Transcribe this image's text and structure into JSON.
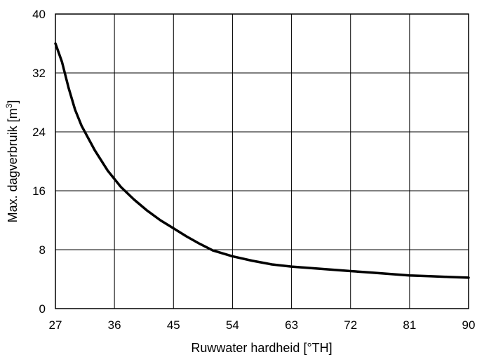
{
  "chart_data": {
    "type": "line",
    "title": "",
    "xlabel": "Ruwwater hardheid [°TH]",
    "ylabel_main": "Max. dagverbruik [m",
    "ylabel_sup": "3",
    "ylabel_end": "]",
    "xlim": [
      27,
      90
    ],
    "ylim": [
      0,
      40
    ],
    "xticks": [
      27,
      36,
      45,
      54,
      63,
      72,
      81,
      90
    ],
    "yticks": [
      0,
      8,
      16,
      24,
      32,
      40
    ],
    "grid": true,
    "series": [
      {
        "x": [
          27,
          28,
          29,
          30,
          31,
          33,
          35,
          37,
          39,
          41,
          43,
          45,
          47,
          49,
          51,
          54,
          57,
          60,
          63,
          66,
          69,
          72,
          75,
          78,
          81,
          84,
          87,
          90
        ],
        "y": [
          36,
          33.5,
          30,
          27,
          24.8,
          21.5,
          18.7,
          16.5,
          14.8,
          13.3,
          12,
          10.9,
          9.8,
          8.8,
          7.9,
          7.1,
          6.5,
          6,
          5.7,
          5.5,
          5.3,
          5.1,
          4.9,
          4.7,
          4.5,
          4.4,
          4.3,
          4.2
        ]
      }
    ]
  }
}
